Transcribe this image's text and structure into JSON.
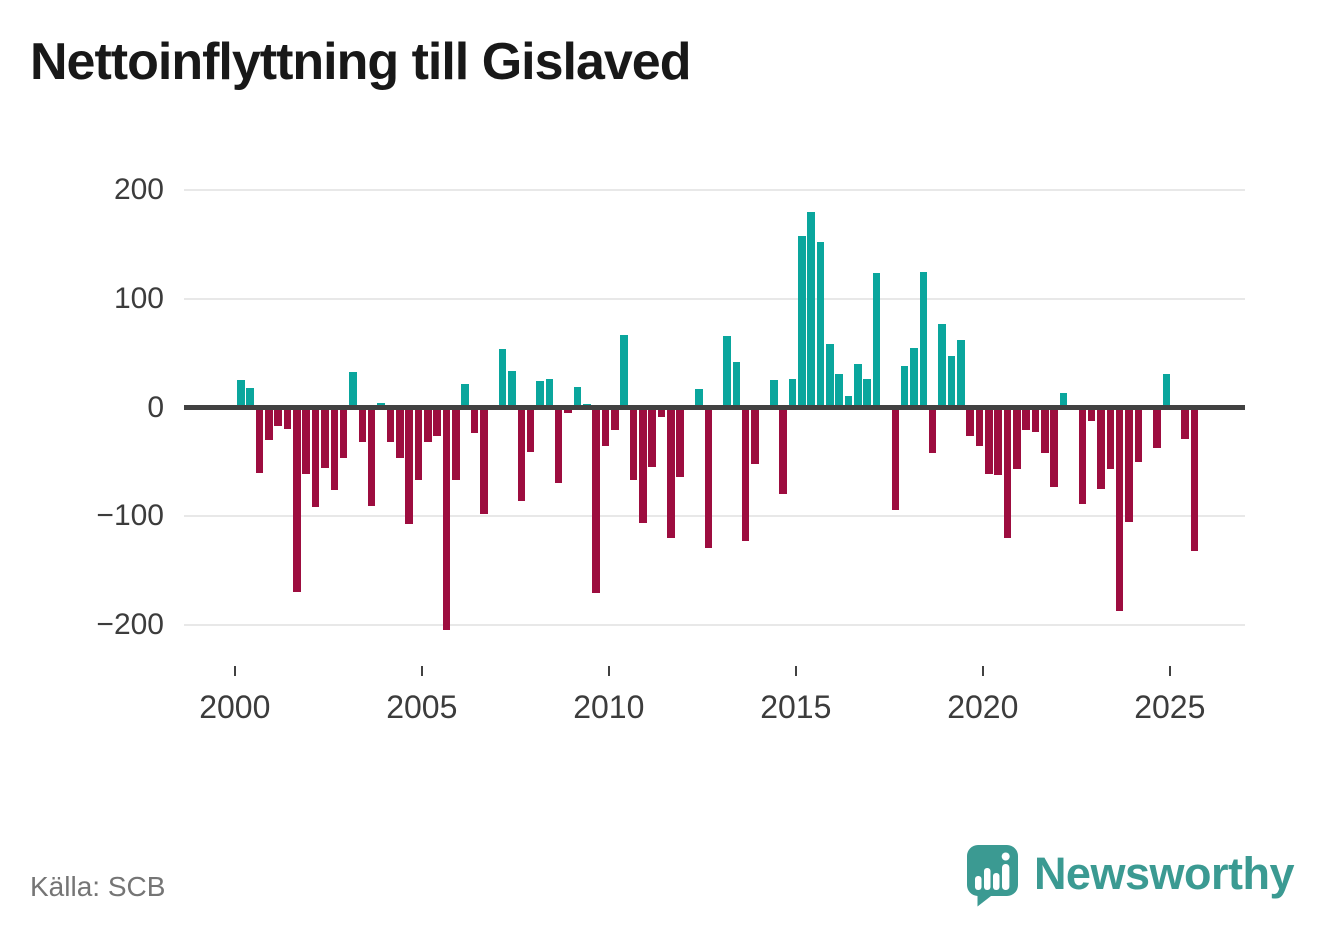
{
  "title": "Nettoinflyttning till Gislaved",
  "source": "Källa: SCB",
  "branding": {
    "logo_text": "Newsworthy",
    "logo_icon": "newsworthy-speech-bubble-barchart-icon",
    "logo_color": "#3b9a92"
  },
  "colors": {
    "positive_bar": "#0aa69d",
    "negative_bar": "#9d0d3f",
    "zero_axis": "#414141",
    "gridline": "#e8e8e8",
    "tick_label": "#3c3c3c",
    "title_text": "#181818",
    "source_text": "#757575",
    "background": "#ffffff"
  },
  "chart_data": {
    "type": "bar",
    "title": "Nettoinflyttning till Gislaved",
    "xlabel": "",
    "ylabel": "",
    "grid": true,
    "legend": "none",
    "ylim": [
      -230,
      215
    ],
    "yticks": [
      {
        "v": 200,
        "label": "200"
      },
      {
        "v": 100,
        "label": "100"
      },
      {
        "v": 0,
        "label": "0"
      },
      {
        "v": -100,
        "label": "−100"
      },
      {
        "v": -200,
        "label": "−200"
      }
    ],
    "xticks": [
      "2000",
      "2005",
      "2010",
      "2015",
      "2020",
      "2025"
    ],
    "x": [
      "2000Q1",
      "2000Q2",
      "2000Q3",
      "2000Q4",
      "2001Q1",
      "2001Q2",
      "2001Q3",
      "2001Q4",
      "2002Q1",
      "2002Q2",
      "2002Q3",
      "2002Q4",
      "2003Q1",
      "2003Q2",
      "2003Q3",
      "2003Q4",
      "2004Q1",
      "2004Q2",
      "2004Q3",
      "2004Q4",
      "2005Q1",
      "2005Q2",
      "2005Q3",
      "2005Q4",
      "2006Q1",
      "2006Q2",
      "2006Q3",
      "2006Q4",
      "2007Q1",
      "2007Q2",
      "2007Q3",
      "2007Q4",
      "2008Q1",
      "2008Q2",
      "2008Q3",
      "2008Q4",
      "2009Q1",
      "2009Q2",
      "2009Q3",
      "2009Q4",
      "2010Q1",
      "2010Q2",
      "2010Q3",
      "2010Q4",
      "2011Q1",
      "2011Q2",
      "2011Q3",
      "2011Q4",
      "2012Q1",
      "2012Q2",
      "2012Q3",
      "2012Q4",
      "2013Q1",
      "2013Q2",
      "2013Q3",
      "2013Q4",
      "2014Q1",
      "2014Q2",
      "2014Q3",
      "2014Q4",
      "2015Q1",
      "2015Q2",
      "2015Q3",
      "2015Q4",
      "2016Q1",
      "2016Q2",
      "2016Q3",
      "2016Q4",
      "2017Q1",
      "2017Q2",
      "2017Q3",
      "2017Q4",
      "2018Q1",
      "2018Q2",
      "2018Q3",
      "2018Q4",
      "2019Q1",
      "2019Q2",
      "2019Q3",
      "2019Q4",
      "2020Q1",
      "2020Q2",
      "2020Q3",
      "2020Q4",
      "2021Q1",
      "2021Q2",
      "2021Q3",
      "2021Q4",
      "2022Q1",
      "2022Q2",
      "2022Q3",
      "2022Q4",
      "2023Q1",
      "2023Q2",
      "2023Q3",
      "2023Q4",
      "2024Q1",
      "2024Q2",
      "2024Q3",
      "2024Q4",
      "2025Q1",
      "2025Q2",
      "2025Q3"
    ],
    "values": [
      25,
      18,
      -58,
      -28,
      -15,
      -18,
      -168,
      -59,
      -90,
      -54,
      -74,
      -45,
      33,
      -30,
      -89,
      4,
      -30,
      -45,
      -105,
      -65,
      -30,
      -24,
      -203,
      -65,
      22,
      -22,
      -96,
      0,
      54,
      34,
      -84,
      -39,
      24,
      26,
      -68,
      -3,
      19,
      3,
      -169,
      -34,
      -19,
      67,
      -65,
      -104,
      -53,
      -7,
      -118,
      -62,
      0,
      17,
      -127,
      0,
      66,
      42,
      -121,
      -50,
      0,
      25,
      -78,
      26,
      158,
      180,
      152,
      58,
      31,
      11,
      40,
      26,
      124,
      0,
      -92,
      38,
      55,
      125,
      -40,
      77,
      47,
      62,
      -24,
      -34,
      -59,
      -60,
      -118,
      -55,
      -19,
      -21,
      -40,
      -71,
      13,
      0,
      -87,
      -11,
      -73,
      -55,
      -185,
      -103,
      -48,
      2,
      -35,
      31,
      0,
      -27,
      -130
    ]
  }
}
